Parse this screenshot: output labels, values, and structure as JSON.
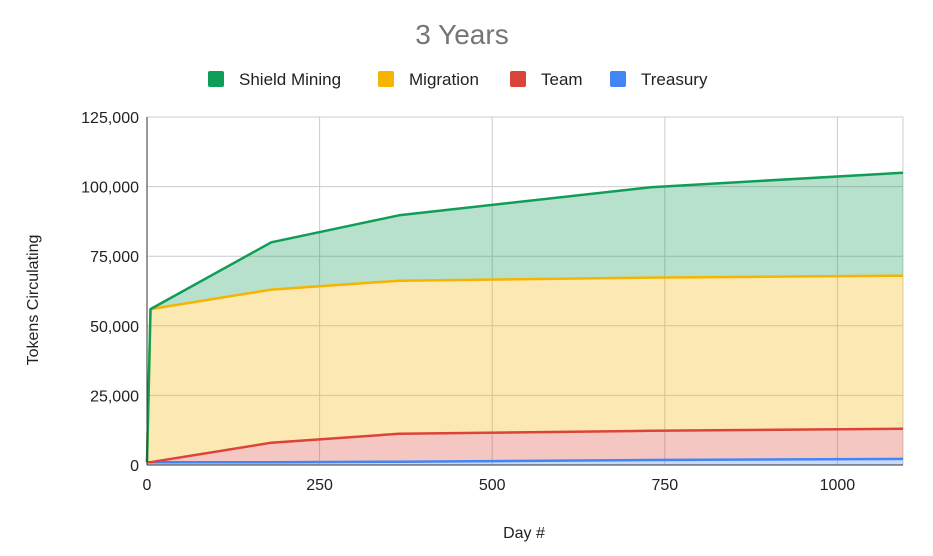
{
  "chart_data": {
    "type": "area",
    "stacked": true,
    "title": "3 Years",
    "xlabel": "Day #",
    "ylabel": "Tokens Circulating",
    "xlim": [
      0,
      1095
    ],
    "ylim": [
      0,
      125000
    ],
    "x_ticks": [
      0,
      250,
      500,
      750,
      1000
    ],
    "x_tick_labels": [
      "0",
      "250",
      "500",
      "750",
      "1000"
    ],
    "y_ticks": [
      0,
      25000,
      50000,
      75000,
      100000,
      125000
    ],
    "y_tick_labels": [
      "0",
      "25,000",
      "50,000",
      "75,000",
      "100,000",
      "125,000"
    ],
    "grid": true,
    "legend_position": "top",
    "x": [
      0,
      5,
      180,
      365,
      730,
      1095
    ],
    "series": [
      {
        "name": "Shield Mining",
        "color": "#0f9d58",
        "values": [
          0,
          0,
          17000,
          23500,
          32500,
          37000
        ]
      },
      {
        "name": "Migration",
        "color": "#f4b400",
        "values": [
          0,
          55000,
          55000,
          55000,
          55000,
          55000
        ]
      },
      {
        "name": "Team",
        "color": "#db4437",
        "values": [
          0,
          0,
          7000,
          10000,
          10500,
          10800
        ]
      },
      {
        "name": "Treasury",
        "color": "#4285f4",
        "values": [
          1000,
          1000,
          1000,
          1200,
          1800,
          2200
        ]
      }
    ]
  }
}
